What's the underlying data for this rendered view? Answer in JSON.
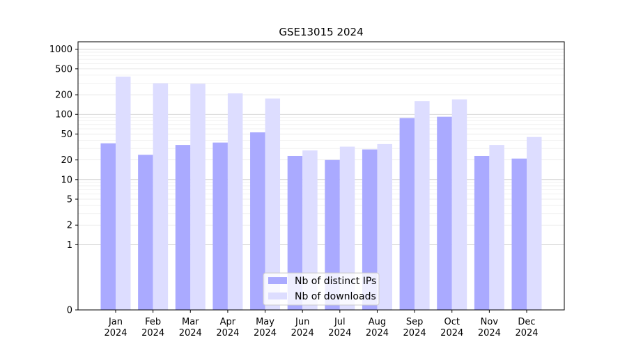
{
  "chart_data": {
    "type": "bar",
    "title": "GSE13015 2024",
    "xlabel": "",
    "ylabel": "",
    "y_scale": "symlog",
    "ylim": [
      0,
      1300
    ],
    "y_ticks": [
      0,
      1,
      2,
      5,
      10,
      20,
      50,
      100,
      200,
      500,
      1000
    ],
    "grid": "horizontal",
    "legend_position": "lower center",
    "categories": [
      "Jan\n2024",
      "Feb\n2024",
      "Mar\n2024",
      "Apr\n2024",
      "May\n2024",
      "Jun\n2024",
      "Jul\n2024",
      "Aug\n2024",
      "Sep\n2024",
      "Oct\n2024",
      "Nov\n2024",
      "Dec\n2024"
    ],
    "series": [
      {
        "name": "Nb of distinct IPs",
        "color": "#aaaaff",
        "values": [
          36,
          24,
          34,
          37,
          53,
          23,
          20,
          29,
          88,
          92,
          23,
          21
        ]
      },
      {
        "name": "Nb of downloads",
        "color": "#ddddff",
        "values": [
          380,
          300,
          295,
          210,
          175,
          28,
          32,
          35,
          160,
          170,
          34,
          45
        ]
      }
    ]
  }
}
